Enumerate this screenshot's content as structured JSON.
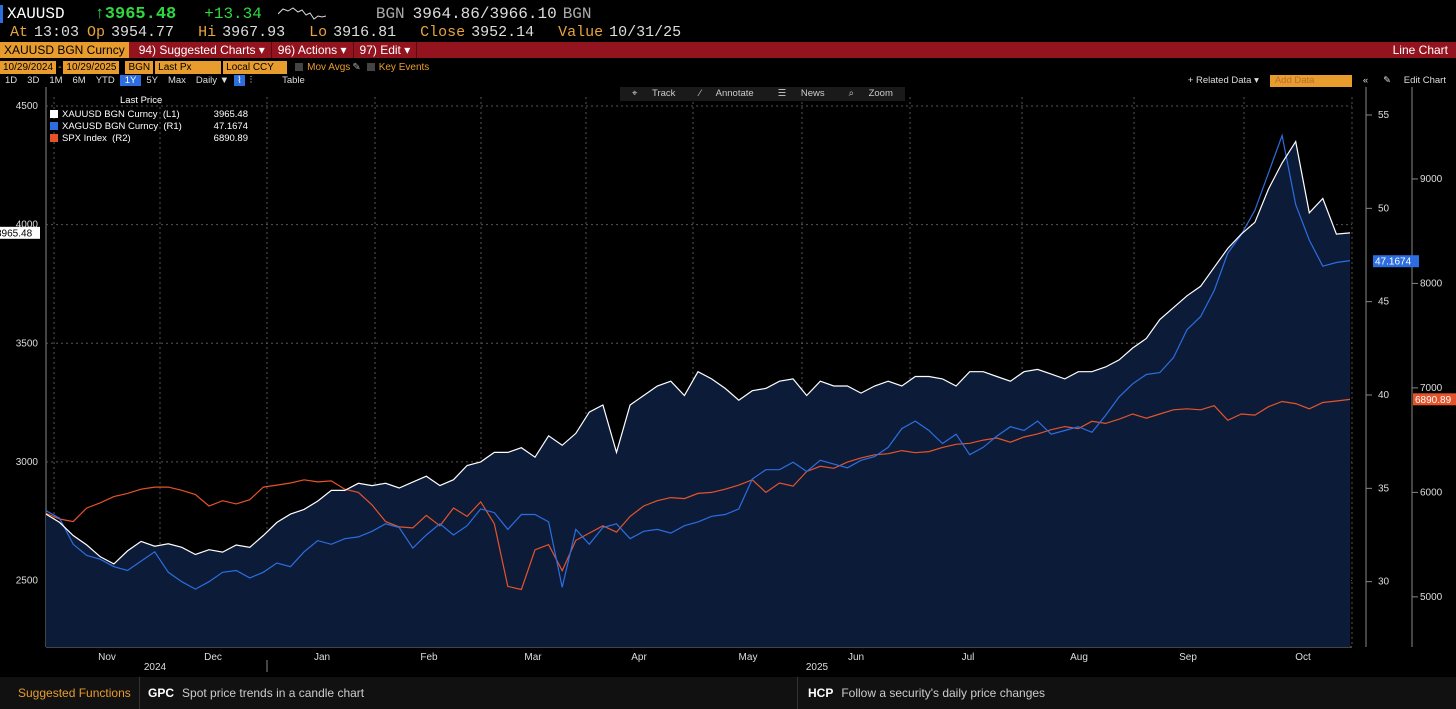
{
  "header": {
    "ticker": "XAUUSD",
    "last_price": "↑3965.48",
    "change": "+13.34",
    "source": "BGN",
    "bid_ask": "3964.86/3966.10",
    "source2": "BGN",
    "at_label": "At",
    "at_time": "13:03",
    "op_label": "Op",
    "op": "3954.77",
    "hi_label": "Hi",
    "hi": "3967.93",
    "lo_label": "Lo",
    "lo": "3916.81",
    "close_label": "Close",
    "close": "3952.14",
    "value_label": "Value",
    "value": "10/31/25"
  },
  "toolbar": {
    "security": "XAUUSD BGN Curncy",
    "suggested": "94) Suggested Charts ▾",
    "actions": "96) Actions ▾",
    "edit": "97) Edit ▾",
    "chart_type": "Line Chart"
  },
  "params": {
    "start_date": "10/29/2024",
    "end_date": "10/29/2025",
    "source": "BGN",
    "field": "Last Px",
    "currency": "Local CCY",
    "mov_avgs": "Mov Avgs",
    "key_events": "Key Events"
  },
  "ranges": {
    "items": [
      "1D",
      "3D",
      "1M",
      "6M",
      "YTD",
      "1Y",
      "5Y",
      "Max"
    ],
    "selected": "1Y",
    "period": "Daily ▼",
    "table": "Table",
    "related": "+ Related Data ▾",
    "add_data_placeholder": "Add Data",
    "edit_chart": "Edit Chart"
  },
  "tools": {
    "track": "Track",
    "annotate": "Annotate",
    "news": "News",
    "zoom": "Zoom"
  },
  "legend": {
    "title": "Last Price",
    "items": [
      {
        "name": "XAUUSD BGN Curncy  (L1)",
        "value": "3965.48",
        "color": "#ffffff"
      },
      {
        "name": "XAGUSD BGN Curncy  (R1)",
        "value": "47.1674",
        "color": "#2c6de0"
      },
      {
        "name": "SPX Index  (R2)",
        "value": "6890.89",
        "color": "#e5532b"
      }
    ]
  },
  "chart_data": {
    "type": "line",
    "x_labels": [
      "Nov",
      "Dec",
      "Jan",
      "Feb",
      "Mar",
      "Apr",
      "May",
      "Jun",
      "Jul",
      "Aug",
      "Sep",
      "Oct"
    ],
    "year_labels": [
      "2024",
      "2025"
    ],
    "left_axis": {
      "ticks": [
        2500,
        3000,
        3500,
        4000,
        4500
      ],
      "range": [
        2220,
        4580
      ],
      "last_tag": "3965.48"
    },
    "right1_axis": {
      "ticks": [
        30,
        35,
        40,
        45,
        50,
        55
      ],
      "range": [
        26.5,
        56.5
      ],
      "last_tag": "47.1674"
    },
    "right2_axis": {
      "ticks": [
        5000,
        6000,
        7000,
        8000,
        9000
      ],
      "range": [
        4520,
        9880
      ],
      "last_tag": "6890.89"
    },
    "series": [
      {
        "name": "XAUUSD BGN Curncy (L1)",
        "axis": "left",
        "color": "#ffffff",
        "values": [
          2780,
          2745,
          2690,
          2650,
          2600,
          2570,
          2625,
          2665,
          2645,
          2655,
          2640,
          2610,
          2630,
          2620,
          2650,
          2640,
          2690,
          2745,
          2780,
          2800,
          2835,
          2880,
          2880,
          2910,
          2900,
          2910,
          2890,
          2915,
          2940,
          2900,
          2925,
          2985,
          3000,
          3040,
          3040,
          3060,
          3020,
          3110,
          3070,
          3120,
          3210,
          3240,
          3040,
          3240,
          3280,
          3320,
          3340,
          3280,
          3380,
          3350,
          3310,
          3260,
          3300,
          3310,
          3340,
          3350,
          3280,
          3340,
          3320,
          3320,
          3290,
          3320,
          3340,
          3320,
          3360,
          3360,
          3350,
          3320,
          3380,
          3380,
          3360,
          3340,
          3380,
          3390,
          3370,
          3350,
          3380,
          3380,
          3400,
          3430,
          3480,
          3520,
          3600,
          3650,
          3700,
          3740,
          3820,
          3900,
          3960,
          4010,
          4150,
          4260,
          4350,
          4050,
          4110,
          3960,
          3965
        ]
      },
      {
        "name": "XAGUSD BGN Curncy (R1)",
        "axis": "right1",
        "color": "#2c6de0",
        "values": [
          33.8,
          33.4,
          32.0,
          31.4,
          31.2,
          30.8,
          30.6,
          31.1,
          31.6,
          30.5,
          30.0,
          29.6,
          30.0,
          30.5,
          30.6,
          30.2,
          30.5,
          31.0,
          30.8,
          31.6,
          32.2,
          32.0,
          32.3,
          32.4,
          32.7,
          33.1,
          32.9,
          31.8,
          32.5,
          33.1,
          32.5,
          33.0,
          33.9,
          33.7,
          32.8,
          33.6,
          33.6,
          33.2,
          29.7,
          32.8,
          32.0,
          32.9,
          33.1,
          32.3,
          32.7,
          32.8,
          32.6,
          33.0,
          33.2,
          33.5,
          33.6,
          33.9,
          35.5,
          36.0,
          36.0,
          36.4,
          35.9,
          36.5,
          36.3,
          36.1,
          36.5,
          36.7,
          37.2,
          38.2,
          38.6,
          38.1,
          37.4,
          37.9,
          36.8,
          37.2,
          37.8,
          38.3,
          38.1,
          38.6,
          37.9,
          38.1,
          38.3,
          38.0,
          38.9,
          39.9,
          40.6,
          41.1,
          41.2,
          42.0,
          43.5,
          44.2,
          45.6,
          47.6,
          48.6,
          49.9,
          51.9,
          53.9,
          50.2,
          48.3,
          46.9,
          47.1,
          47.2
        ]
      },
      {
        "name": "SPX Index (R2)",
        "axis": "right2",
        "color": "#e5532b",
        "values": [
          5800,
          5745,
          5720,
          5850,
          5900,
          5960,
          5990,
          6030,
          6050,
          6050,
          6020,
          5980,
          5870,
          5920,
          5890,
          5930,
          6050,
          6070,
          6090,
          6120,
          6100,
          6110,
          6030,
          6000,
          5880,
          5720,
          5670,
          5660,
          5780,
          5680,
          5850,
          5770,
          5910,
          5700,
          5100,
          5070,
          5450,
          5500,
          5250,
          5540,
          5610,
          5680,
          5620,
          5770,
          5870,
          5920,
          5950,
          5940,
          5990,
          6000,
          6030,
          6070,
          6120,
          6000,
          6090,
          6060,
          6200,
          6250,
          6230,
          6290,
          6330,
          6360,
          6370,
          6400,
          6380,
          6390,
          6430,
          6460,
          6470,
          6500,
          6520,
          6480,
          6530,
          6560,
          6600,
          6630,
          6610,
          6680,
          6660,
          6700,
          6750,
          6710,
          6750,
          6790,
          6800,
          6790,
          6830,
          6690,
          6750,
          6740,
          6820,
          6870,
          6850,
          6800,
          6860,
          6875,
          6890
        ]
      }
    ]
  },
  "bottom": {
    "suggested": "Suggested Functions",
    "f1_code": "GPC",
    "f1_desc": "Spot price trends in a candle chart",
    "f2_code": "HCP",
    "f2_desc": "Follow a security's daily price changes"
  }
}
